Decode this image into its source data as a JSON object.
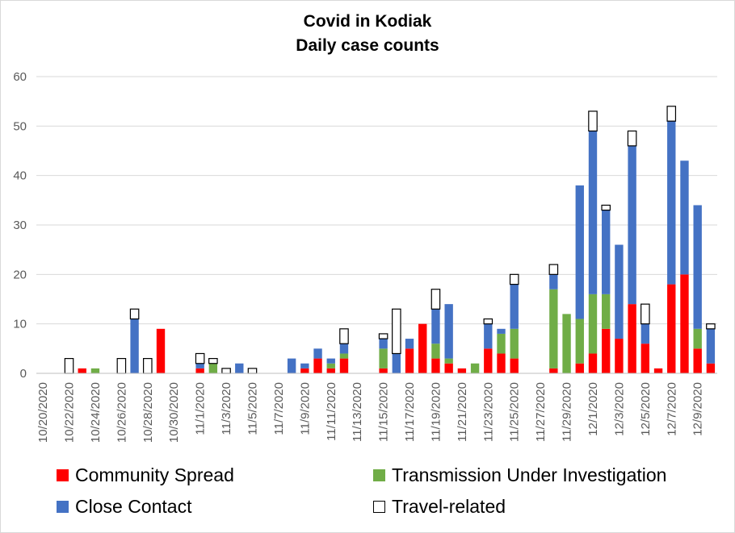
{
  "chart_data": {
    "type": "bar",
    "stacked": true,
    "title": "Covid in Kodiak",
    "subtitle": "Daily case counts",
    "xlabel": "",
    "ylabel": "",
    "ylim": [
      0,
      60
    ],
    "yticks": [
      0,
      10,
      20,
      30,
      40,
      50,
      60
    ],
    "grid": true,
    "legend_position": "bottom",
    "xtick_labels": [
      "10/20/2020",
      "10/22/2020",
      "10/24/2020",
      "10/26/2020",
      "10/28/2020",
      "10/30/2020",
      "11/1/2020",
      "11/3/2020",
      "11/5/2020",
      "11/7/2020",
      "11/9/2020",
      "11/11/2020",
      "11/13/2020",
      "11/15/2020",
      "11/17/2020",
      "11/19/2020",
      "11/21/2020",
      "11/23/2020",
      "11/25/2020",
      "11/27/2020",
      "11/29/2020",
      "12/1/2020",
      "12/3/2020",
      "12/5/2020",
      "12/7/2020",
      "12/9/2020"
    ],
    "categories": [
      "10/20/2020",
      "10/21/2020",
      "10/22/2020",
      "10/23/2020",
      "10/24/2020",
      "10/25/2020",
      "10/26/2020",
      "10/27/2020",
      "10/28/2020",
      "10/29/2020",
      "10/30/2020",
      "10/31/2020",
      "11/1/2020",
      "11/2/2020",
      "11/3/2020",
      "11/4/2020",
      "11/5/2020",
      "11/6/2020",
      "11/7/2020",
      "11/8/2020",
      "11/9/2020",
      "11/10/2020",
      "11/11/2020",
      "11/12/2020",
      "11/13/2020",
      "11/14/2020",
      "11/15/2020",
      "11/16/2020",
      "11/17/2020",
      "11/18/2020",
      "11/19/2020",
      "11/20/2020",
      "11/21/2020",
      "11/22/2020",
      "11/23/2020",
      "11/24/2020",
      "11/25/2020",
      "11/26/2020",
      "11/27/2020",
      "11/28/2020",
      "11/29/2020",
      "11/30/2020",
      "12/1/2020",
      "12/2/2020",
      "12/3/2020",
      "12/4/2020",
      "12/5/2020",
      "12/6/2020",
      "12/7/2020",
      "12/8/2020",
      "12/9/2020",
      "12/10/2020"
    ],
    "series": [
      {
        "name": "Community Spread",
        "color": "#ff0000",
        "stroke": "none",
        "values": [
          0,
          0,
          0,
          1,
          0,
          0,
          0,
          0,
          0,
          9,
          0,
          0,
          1,
          0,
          0,
          0,
          0,
          0,
          0,
          0,
          1,
          3,
          1,
          3,
          0,
          0,
          1,
          0,
          5,
          10,
          3,
          2,
          1,
          0,
          5,
          4,
          3,
          0,
          0,
          1,
          0,
          2,
          4,
          9,
          7,
          14,
          6,
          1,
          18,
          20,
          5,
          2
        ]
      },
      {
        "name": "Transmission Under Investigation",
        "color": "#70ad47",
        "stroke": "none",
        "values": [
          0,
          0,
          0,
          0,
          1,
          0,
          0,
          0,
          0,
          0,
          0,
          0,
          0,
          2,
          0,
          0,
          0,
          0,
          0,
          0,
          0,
          0,
          1,
          1,
          0,
          0,
          4,
          0,
          0,
          0,
          3,
          1,
          0,
          2,
          0,
          4,
          6,
          0,
          0,
          16,
          12,
          9,
          12,
          7,
          0,
          0,
          0,
          0,
          0,
          0,
          4,
          0
        ]
      },
      {
        "name": "Close Contact",
        "color": "#4472c4",
        "stroke": "none",
        "values": [
          0,
          0,
          0,
          0,
          0,
          0,
          0,
          11,
          0,
          0,
          0,
          0,
          1,
          0,
          0,
          2,
          0,
          0,
          0,
          3,
          1,
          2,
          1,
          2,
          0,
          0,
          2,
          4,
          2,
          0,
          7,
          11,
          0,
          0,
          5,
          1,
          9,
          0,
          0,
          3,
          0,
          27,
          33,
          17,
          19,
          32,
          4,
          0,
          33,
          23,
          25,
          7
        ]
      },
      {
        "name": "Travel-related",
        "color": "#ffffff",
        "stroke": "#000000",
        "values": [
          0,
          0,
          3,
          0,
          0,
          0,
          3,
          2,
          3,
          0,
          0,
          0,
          2,
          1,
          1,
          0,
          1,
          0,
          0,
          0,
          0,
          0,
          0,
          3,
          0,
          0,
          1,
          9,
          0,
          0,
          4,
          0,
          0,
          0,
          1,
          0,
          2,
          0,
          0,
          2,
          0,
          0,
          4,
          1,
          0,
          3,
          4,
          0,
          3,
          0,
          0,
          1
        ]
      }
    ]
  },
  "legend": {
    "items": [
      {
        "label": "Community Spread",
        "color": "#ff0000"
      },
      {
        "label": "Transmission Under Investigation",
        "color": "#70ad47"
      },
      {
        "label": "Close Contact",
        "color": "#4472c4"
      },
      {
        "label": "Travel-related",
        "color": "#ffffff"
      }
    ]
  }
}
